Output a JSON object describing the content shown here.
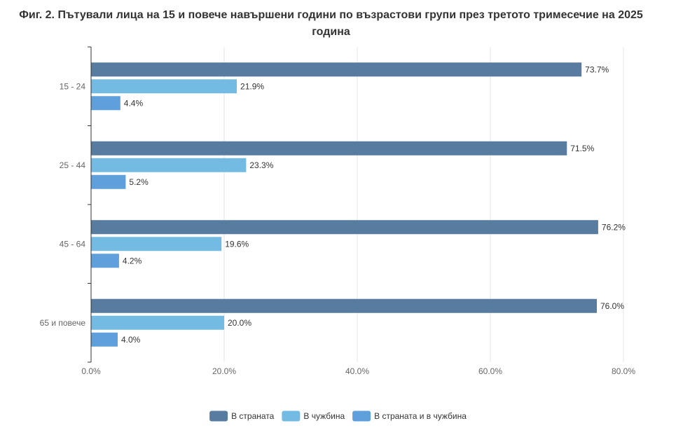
{
  "title": "Фиг. 2. Пътували лица на 15 и повече навършени години по възрастови групи през третото тримесечие на 2025 година",
  "chart_data": {
    "type": "bar",
    "orientation": "horizontal",
    "title": "Фиг. 2. Пътували лица на 15 и повече навършени години по възрастови групи през третото тримесечие на 2025 година",
    "categories": [
      "15 - 24",
      "25 - 44",
      "45 - 64",
      "65 и повече"
    ],
    "series": [
      {
        "name": "В страната",
        "color": "#577ca0",
        "values": [
          73.7,
          71.5,
          76.2,
          76.0
        ],
        "labels": [
          "73.7%",
          "71.5%",
          "76.2%",
          "76.0%"
        ]
      },
      {
        "name": "В чужбина",
        "color": "#74bbe3",
        "values": [
          21.9,
          23.3,
          19.6,
          20.0
        ],
        "labels": [
          "21.9%",
          "23.3%",
          "19.6%",
          "20.0%"
        ]
      },
      {
        "name": "В страната и в чужбина",
        "color": "#5f9fdc",
        "values": [
          4.4,
          5.2,
          4.2,
          4.0
        ],
        "labels": [
          "4.4%",
          "5.2%",
          "4.2%",
          "4.0%"
        ]
      }
    ],
    "xlim": [
      0,
      80
    ],
    "x_ticks": [
      0,
      20,
      40,
      60,
      80
    ],
    "x_tick_labels": [
      "0.0%",
      "20.0%",
      "40.0%",
      "60.0%",
      "80.0%"
    ],
    "xlabel": "",
    "ylabel": "",
    "grid": true,
    "legend_position": "bottom"
  }
}
